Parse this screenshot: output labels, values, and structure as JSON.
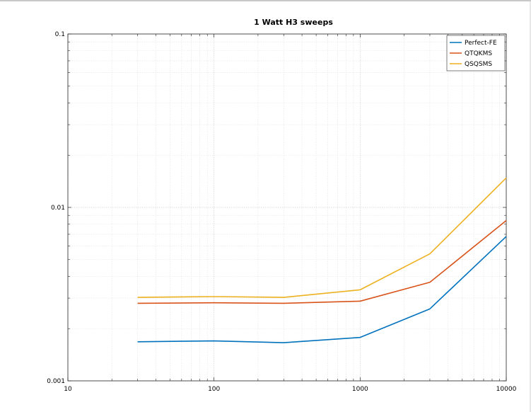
{
  "chart_data": {
    "type": "line",
    "title": "1 Watt H3 sweeps",
    "xlabel": "",
    "ylabel": "",
    "xscale": "log",
    "yscale": "log",
    "xlim": [
      10,
      10000
    ],
    "ylim": [
      0.001,
      0.1
    ],
    "grid": true,
    "legend_position": "top-right",
    "x_tick_labels": [
      "10",
      "100",
      "1000",
      "10000"
    ],
    "y_tick_labels": [
      "0.001",
      "0.01",
      "0.1"
    ],
    "x": [
      30,
      100,
      300,
      1000,
      3000,
      10000
    ],
    "series": [
      {
        "name": "Perfect-FE",
        "color": "#0072bd",
        "values": [
          0.00168,
          0.0017,
          0.00166,
          0.00178,
          0.0026,
          0.0068
        ]
      },
      {
        "name": "QTQKMS",
        "color": "#d95319",
        "values": [
          0.0028,
          0.00282,
          0.0028,
          0.00288,
          0.0037,
          0.0084
        ]
      },
      {
        "name": "QSQSMS",
        "color": "#edb120",
        "values": [
          0.00303,
          0.00306,
          0.00303,
          0.00335,
          0.0054,
          0.0148
        ]
      }
    ]
  }
}
